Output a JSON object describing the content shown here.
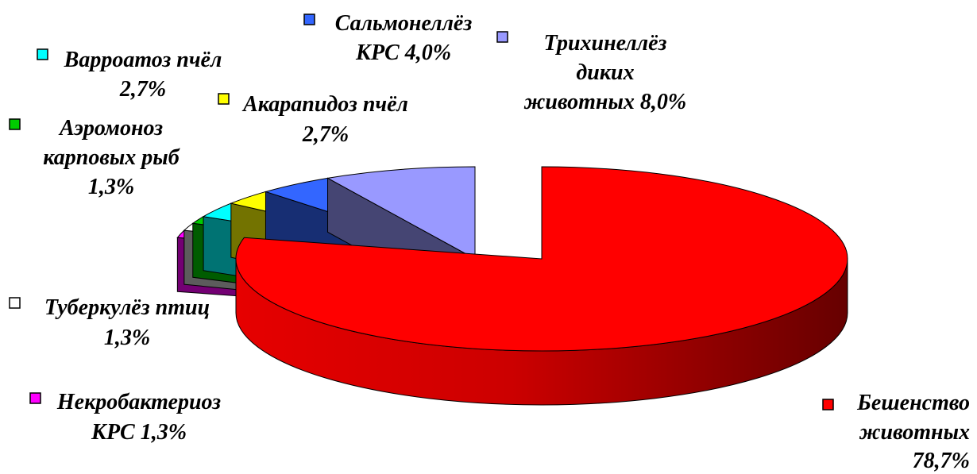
{
  "chart_data": {
    "type": "pie",
    "title": "",
    "slices": [
      {
        "name": "Бешенство животных",
        "value": 78.7,
        "color": "#ff0000",
        "label_lines": [
          "Бешенство",
          "животных",
          "78,7%"
        ]
      },
      {
        "name": "Трихинеллёз диких животных",
        "value": 8.0,
        "color": "#9999ff",
        "label_lines": [
          "Трихинеллёз",
          "диких",
          "животных 8,0%"
        ]
      },
      {
        "name": "Сальмонеллёз КРС",
        "value": 4.0,
        "color": "#3366ff",
        "label_lines": [
          "Сальмонеллёз",
          "КРС 4,0%"
        ]
      },
      {
        "name": "Акарапидоз пчёл",
        "value": 2.7,
        "color": "#ffff00",
        "label_lines": [
          "Акарапидоз пчёл",
          "2,7%"
        ]
      },
      {
        "name": "Варроатоз пчёл",
        "value": 2.7,
        "color": "#00ffff",
        "label_lines": [
          "Варроатоз пчёл",
          "2,7%"
        ]
      },
      {
        "name": "Аэромоноз карповых рыб",
        "value": 1.3,
        "color": "#00cc00",
        "label_lines": [
          "Аэромоноз",
          "карповых рыб",
          "1,3%"
        ]
      },
      {
        "name": "Туберкулёз птиц",
        "value": 1.3,
        "color": "#ffffff",
        "label_lines": [
          "Туберкулёз птиц",
          "1,3%"
        ]
      },
      {
        "name": "Некробактериоз КРС",
        "value": 1.3,
        "color": "#ff00ff",
        "label_lines": [
          "Некробактериоз",
          "КРС 1,3%"
        ]
      }
    ],
    "legend": "inline labels with colored markers",
    "style": "3d exploded pie"
  }
}
